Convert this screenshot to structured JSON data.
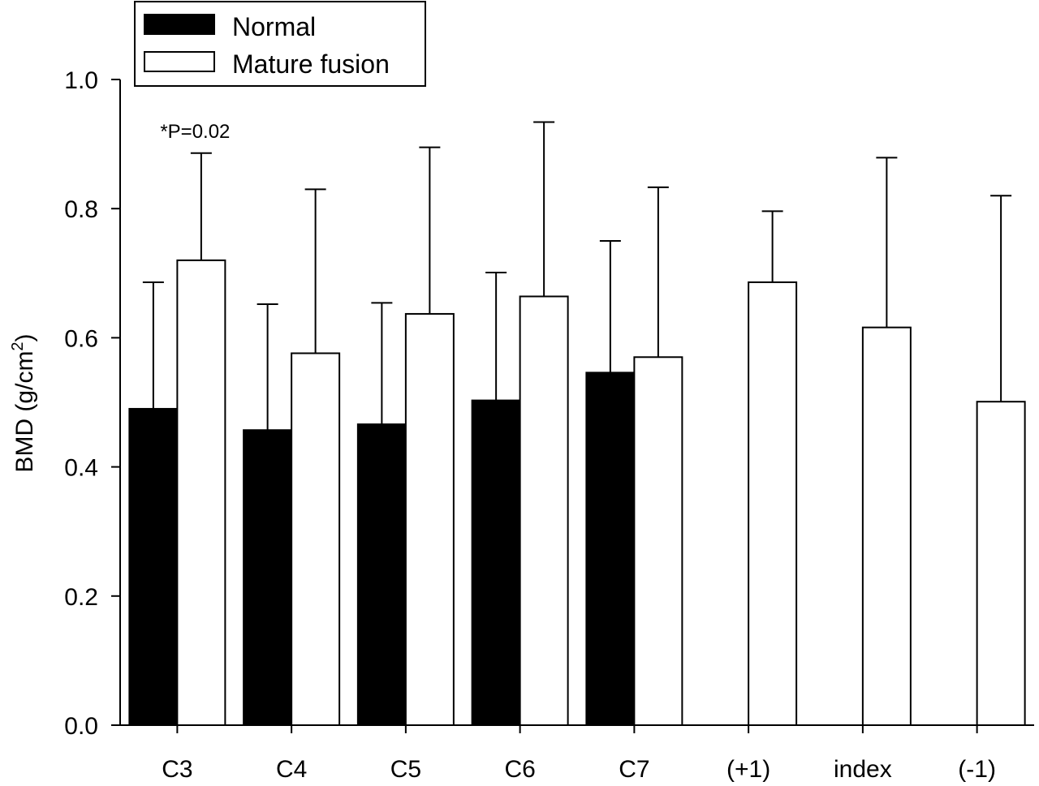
{
  "chart_data": {
    "type": "bar",
    "categories": [
      "C3",
      "C4",
      "C5",
      "C6",
      "C7",
      "(+1)",
      "index",
      "(-1)"
    ],
    "series": [
      {
        "name": "Normal",
        "color": "#000000",
        "values": [
          0.49,
          0.457,
          0.466,
          0.503,
          0.546,
          null,
          null,
          null
        ],
        "error_upper": [
          0.686,
          0.652,
          0.654,
          0.701,
          0.75,
          null,
          null,
          null
        ]
      },
      {
        "name": "Mature fusion",
        "color": "#ffffff",
        "values": [
          0.72,
          0.576,
          0.637,
          0.664,
          0.57,
          0.686,
          0.616,
          0.501
        ],
        "error_upper": [
          0.886,
          0.83,
          0.895,
          0.934,
          0.833,
          0.796,
          0.879,
          0.82
        ]
      }
    ],
    "ylabel": "BMD (g/cm",
    "ylabel_superscript": "2",
    "ylabel_suffix": ")",
    "ylim": [
      0,
      1.0
    ],
    "yticks": [
      "0.0",
      "0.2",
      "0.4",
      "0.6",
      "0.8",
      "1.0"
    ],
    "ytick_values": [
      0,
      0.2,
      0.4,
      0.6,
      0.8,
      1.0
    ],
    "annotation": {
      "text": "*P=0.02",
      "category": "C3"
    },
    "legend_position": "top-left",
    "grid": false
  }
}
